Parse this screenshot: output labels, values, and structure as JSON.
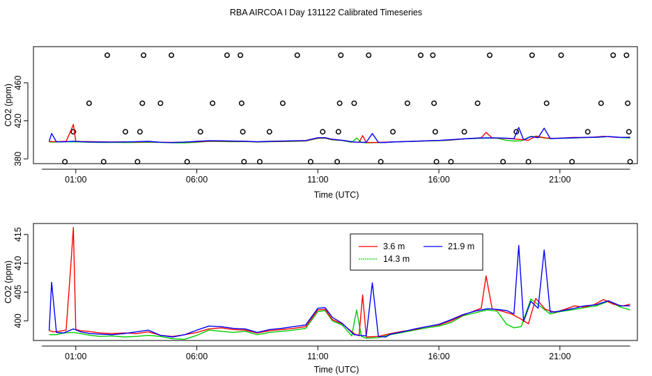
{
  "title": "RBA AIRCOA I  Day 131122  Calibrated Timeseries",
  "colors": {
    "red": "#ff0000",
    "green": "#00cc00",
    "blue": "#0000ff",
    "axis": "#000000"
  },
  "chart_data": [
    {
      "type": "line",
      "panel": "top",
      "xlabel": "Time (UTC)",
      "ylabel": "CO2 (ppm)",
      "x_unit": "hours UTC",
      "xlim": [
        -0.75,
        24.2
      ],
      "ylim": [
        375,
        498
      ],
      "x_tick_values": [
        1,
        6,
        11,
        16,
        21
      ],
      "x_tick_labels": [
        "01:00",
        "06:00",
        "11:00",
        "16:00",
        "21:00"
      ],
      "y_tick_values": [
        380,
        420,
        460
      ],
      "y_tick_labels": [
        "380",
        "420",
        "460"
      ],
      "legend": "none",
      "markers": {
        "style": "open-circle",
        "points": [
          [
            0.55,
            377
          ],
          [
            0.9,
            408.5
          ],
          [
            1.55,
            438.5
          ],
          [
            2.15,
            377
          ],
          [
            2.3,
            489
          ],
          [
            3.05,
            408.5
          ],
          [
            3.55,
            377
          ],
          [
            3.65,
            408.5
          ],
          [
            3.75,
            438.5
          ],
          [
            3.8,
            489
          ],
          [
            4.5,
            438.5
          ],
          [
            4.95,
            489
          ],
          [
            5.6,
            377
          ],
          [
            6.15,
            408.5
          ],
          [
            6.65,
            438.5
          ],
          [
            7.25,
            489
          ],
          [
            7.8,
            489
          ],
          [
            7.85,
            438.5
          ],
          [
            7.9,
            408.5
          ],
          [
            7.95,
            377
          ],
          [
            8.6,
            377
          ],
          [
            9.0,
            408.5
          ],
          [
            9.55,
            438.5
          ],
          [
            10.15,
            489
          ],
          [
            10.7,
            377
          ],
          [
            11.2,
            408.5
          ],
          [
            11.8,
            377
          ],
          [
            11.85,
            408.5
          ],
          [
            11.9,
            438.5
          ],
          [
            11.95,
            489
          ],
          [
            12.5,
            438.5
          ],
          [
            13.1,
            489
          ],
          [
            13.6,
            377
          ],
          [
            14.1,
            408.5
          ],
          [
            14.7,
            438.5
          ],
          [
            15.25,
            489
          ],
          [
            15.75,
            489
          ],
          [
            15.8,
            438.5
          ],
          [
            15.85,
            408.5
          ],
          [
            15.9,
            377
          ],
          [
            16.5,
            377
          ],
          [
            17.05,
            408.5
          ],
          [
            17.6,
            438.5
          ],
          [
            18.1,
            489
          ],
          [
            18.65,
            377
          ],
          [
            19.2,
            408.5
          ],
          [
            19.7,
            377
          ],
          [
            19.85,
            489
          ],
          [
            20.45,
            438.5
          ],
          [
            21.05,
            489
          ],
          [
            21.5,
            377
          ],
          [
            22.15,
            408.5
          ],
          [
            22.7,
            438.5
          ],
          [
            23.2,
            489
          ],
          [
            23.75,
            489
          ],
          [
            23.8,
            438.5
          ],
          [
            23.85,
            408.5
          ],
          [
            23.9,
            377
          ]
        ]
      },
      "series_ref": "shared"
    },
    {
      "type": "line",
      "panel": "bottom",
      "xlabel": "Time (UTC)",
      "ylabel": "CO2 (ppm)",
      "x_unit": "hours UTC",
      "xlim": [
        -0.75,
        24.2
      ],
      "ylim": [
        396.6,
        416.9
      ],
      "x_tick_values": [
        1,
        6,
        11,
        16,
        21
      ],
      "x_tick_labels": [
        "01:00",
        "06:00",
        "11:00",
        "16:00",
        "21:00"
      ],
      "y_tick_values": [
        400,
        405,
        410,
        415
      ],
      "y_tick_labels": [
        "400",
        "405",
        "410",
        "415"
      ],
      "legend": "top-center",
      "legend_entries": [
        {
          "label": "3.6 m",
          "color": "#ff0000"
        },
        {
          "label": "21.9 m",
          "color": "#0000ff"
        },
        {
          "label": "14.3 m",
          "color": "#00cc00"
        }
      ],
      "series_ref": "shared"
    }
  ],
  "series": [
    {
      "name": "3.6 m",
      "color": "#ff0000",
      "x": [
        -0.1,
        0.1,
        0.3,
        0.6,
        0.8,
        0.9,
        1.0,
        1.2,
        1.5,
        2.0,
        2.5,
        3.0,
        3.5,
        4.0,
        4.5,
        5.0,
        5.5,
        6.0,
        6.5,
        7.0,
        7.5,
        8.0,
        8.5,
        9.0,
        9.5,
        10.0,
        10.5,
        11.0,
        11.3,
        11.6,
        12.0,
        12.5,
        12.7,
        12.85,
        13.0,
        13.5,
        14.0,
        14.5,
        15.0,
        15.5,
        16.0,
        16.5,
        17.0,
        17.5,
        17.75,
        17.95,
        18.2,
        18.6,
        19.0,
        19.4,
        19.7,
        20.0,
        20.4,
        20.8,
        21.2,
        21.6,
        22.0,
        22.4,
        22.8,
        23.2,
        23.6,
        23.9
      ],
      "y": [
        398.3,
        398.1,
        398.2,
        398.4,
        410.0,
        416.2,
        398.5,
        398.3,
        398.2,
        397.9,
        397.8,
        397.9,
        397.8,
        398.1,
        397.5,
        397.3,
        397.6,
        398.0,
        398.6,
        398.8,
        398.5,
        398.4,
        397.9,
        398.3,
        398.5,
        398.7,
        399.0,
        401.9,
        402.0,
        400.2,
        399.5,
        397.8,
        397.4,
        404.5,
        397.2,
        397.3,
        397.8,
        398.2,
        398.5,
        399.0,
        399.3,
        400.0,
        401.0,
        401.8,
        402.2,
        407.8,
        402.1,
        401.7,
        401.2,
        400.3,
        399.5,
        403.9,
        402.0,
        401.5,
        402.0,
        402.6,
        402.4,
        402.8,
        403.7,
        402.9,
        402.6,
        402.9
      ]
    },
    {
      "name": "14.3 m",
      "color": "#00cc00",
      "x": [
        -0.1,
        0.2,
        0.5,
        0.9,
        1.2,
        1.6,
        2.0,
        2.5,
        3.0,
        3.5,
        4.0,
        4.5,
        5.0,
        5.5,
        6.0,
        6.5,
        7.0,
        7.5,
        8.0,
        8.5,
        9.0,
        9.5,
        10.0,
        10.5,
        11.0,
        11.3,
        11.6,
        12.0,
        12.4,
        12.6,
        12.8,
        13.0,
        13.5,
        14.0,
        14.5,
        15.0,
        15.5,
        16.0,
        16.5,
        17.0,
        17.5,
        18.0,
        18.4,
        18.8,
        19.1,
        19.4,
        19.8,
        20.2,
        20.6,
        21.0,
        21.5,
        22.0,
        22.5,
        23.0,
        23.5,
        23.9
      ],
      "y": [
        397.6,
        397.6,
        397.9,
        398.0,
        397.8,
        397.5,
        397.3,
        397.4,
        397.2,
        397.3,
        397.5,
        397.3,
        396.9,
        396.8,
        397.5,
        398.4,
        398.2,
        398.0,
        398.2,
        397.6,
        398.0,
        398.2,
        398.4,
        398.7,
        401.6,
        401.8,
        400.0,
        399.3,
        397.4,
        401.9,
        397.3,
        397.0,
        397.1,
        397.6,
        398.0,
        398.4,
        398.8,
        399.1,
        399.7,
        400.9,
        401.4,
        401.9,
        401.7,
        399.4,
        398.8,
        399.0,
        403.8,
        402.5,
        401.2,
        401.6,
        401.9,
        402.3,
        402.6,
        403.4,
        402.4,
        401.9
      ]
    },
    {
      "name": "21.9 m",
      "color": "#0000ff",
      "x": [
        -0.1,
        0.0,
        0.2,
        0.5,
        0.9,
        1.2,
        1.6,
        2.0,
        2.5,
        3.0,
        3.5,
        4.0,
        4.5,
        5.0,
        5.5,
        6.0,
        6.5,
        7.0,
        7.5,
        8.0,
        8.5,
        9.0,
        9.5,
        10.0,
        10.5,
        11.0,
        11.3,
        11.6,
        12.0,
        12.5,
        13.0,
        13.25,
        13.5,
        13.8,
        14.0,
        14.5,
        15.0,
        15.5,
        16.0,
        16.5,
        17.0,
        17.5,
        18.0,
        18.4,
        18.8,
        19.1,
        19.3,
        19.5,
        19.8,
        20.1,
        20.35,
        20.6,
        21.0,
        21.5,
        22.0,
        22.5,
        23.0,
        23.5,
        23.9
      ],
      "y": [
        398.3,
        406.7,
        398.0,
        397.9,
        398.6,
        398.1,
        397.8,
        397.7,
        397.6,
        397.8,
        398.1,
        398.4,
        397.5,
        397.2,
        397.6,
        398.4,
        399.1,
        399.0,
        398.7,
        398.6,
        398.0,
        398.5,
        398.7,
        399.0,
        399.3,
        402.2,
        402.3,
        400.6,
        399.6,
        397.6,
        397.4,
        406.6,
        397.3,
        397.2,
        397.7,
        398.1,
        398.6,
        399.0,
        399.4,
        400.2,
        401.1,
        401.7,
        402.1,
        402.0,
        401.8,
        401.2,
        413.1,
        399.9,
        403.4,
        402.2,
        412.3,
        401.5,
        401.7,
        402.1,
        402.6,
        402.8,
        403.5,
        402.6,
        402.6
      ]
    }
  ],
  "top_panel_series_scale": {
    "note": "same series, compressed axis"
  }
}
